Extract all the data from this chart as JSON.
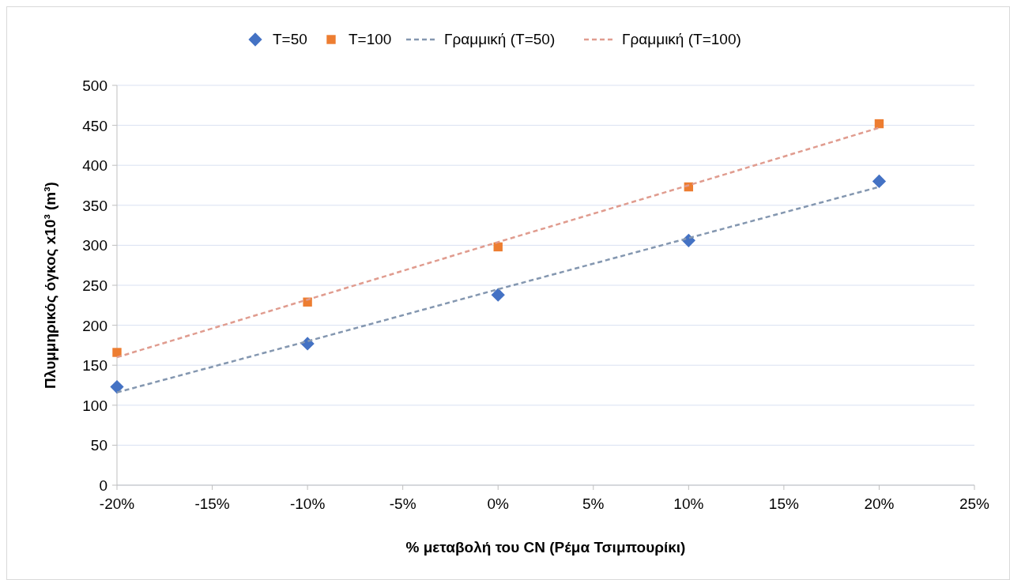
{
  "chart_data": {
    "type": "scatter",
    "xlabel": "% μεταβολή του CN (Ρέμα Τσιμπουρίκι)",
    "ylabel": "Πλυμμηρικός όγκος x10³ (m³)",
    "x": [
      -20,
      -10,
      0,
      10,
      20
    ],
    "xlim": [
      -20,
      25
    ],
    "xticks": [
      {
        "value": -20,
        "label": "-20%"
      },
      {
        "value": -15,
        "label": "-15%"
      },
      {
        "value": -10,
        "label": "-10%"
      },
      {
        "value": -5,
        "label": "-5%"
      },
      {
        "value": 0,
        "label": "0%"
      },
      {
        "value": 5,
        "label": "5%"
      },
      {
        "value": 10,
        "label": "10%"
      },
      {
        "value": 15,
        "label": "15%"
      },
      {
        "value": 20,
        "label": "20%"
      },
      {
        "value": 25,
        "label": "25%"
      }
    ],
    "ylim": [
      0,
      500
    ],
    "yticks": [
      0,
      50,
      100,
      150,
      200,
      250,
      300,
      350,
      400,
      450,
      500
    ],
    "grid": "y",
    "legend": "top",
    "series": [
      {
        "name": "T=50",
        "color": "#4472c4",
        "marker": "diamond",
        "values": [
          123,
          177,
          238,
          306,
          380
        ]
      },
      {
        "name": "T=100",
        "color": "#ed7d31",
        "marker": "square",
        "values": [
          166,
          229,
          298,
          373,
          452
        ]
      },
      {
        "name": "Γραμμική (T=50)",
        "type": "line",
        "color": "#8497b0",
        "line_style": "dashed",
        "marker": "none",
        "values": [
          116,
          180,
          245,
          309,
          373
        ]
      },
      {
        "name": "Γραμμική (T=100)",
        "type": "line",
        "color": "#e09c8f",
        "line_style": "dashed",
        "marker": "none",
        "values": [
          160,
          232,
          304,
          375,
          447
        ]
      }
    ]
  }
}
